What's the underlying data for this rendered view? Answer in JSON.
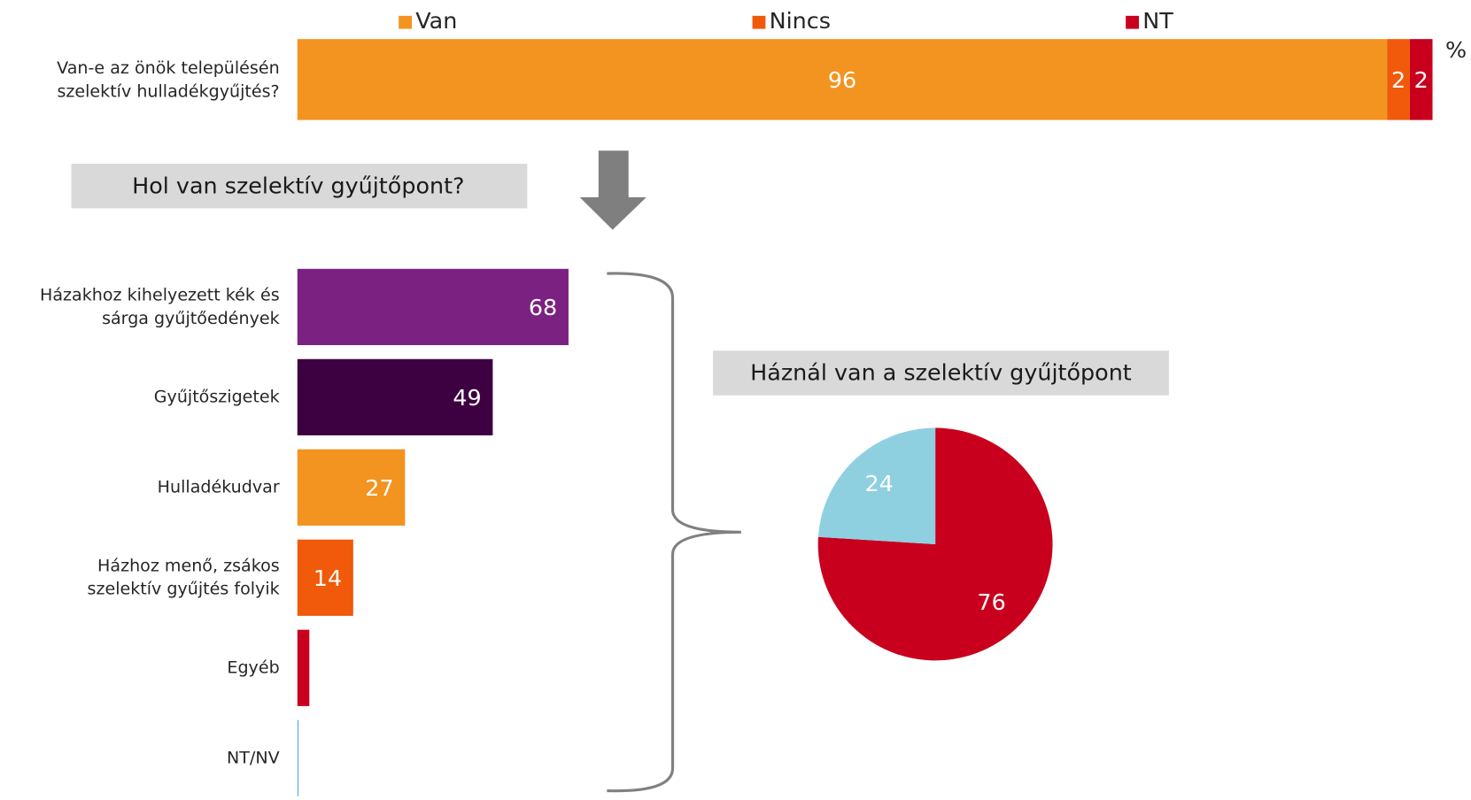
{
  "chart_data": [
    {
      "type": "stacked_bar_horizontal",
      "categories": [
        "Van-e az önök településén szelektív hulladékgyűjtés?"
      ],
      "series": [
        {
          "name": "Van",
          "color": "#f39320",
          "values": [
            96
          ]
        },
        {
          "name": "Nincs",
          "color": "#f05a0a",
          "values": [
            2
          ]
        },
        {
          "name": "NT",
          "color": "#c8001e",
          "values": [
            2
          ]
        }
      ],
      "unit": "%",
      "xlim": [
        0,
        100
      ]
    },
    {
      "type": "bar_horizontal",
      "title": "Hol van szelektív gyűjtőpont?",
      "categories": [
        "Házakhoz kihelyezett kék és sárga gyűjtőedények",
        "Gyűjtőszigetek",
        "Hulladékudvar",
        "Házhoz menő, zsákos szelektív gyűjtés folyik",
        "Egyéb",
        "NT/NV"
      ],
      "values": [
        68,
        49,
        27,
        14,
        3,
        0.3
      ],
      "value_labels": [
        "68",
        "49",
        "27",
        "14",
        null,
        null
      ],
      "colors": [
        "#7b2181",
        "#3d0040",
        "#f39320",
        "#f05a0a",
        "#c8001e",
        "#6ab4d8"
      ],
      "xlim": [
        0,
        100
      ]
    },
    {
      "type": "pie",
      "title": "Háznál van a szelektív gyűjtőpont",
      "values": [
        76,
        24
      ],
      "colors": [
        "#c8001e",
        "#8fd0e0"
      ]
    }
  ]
}
